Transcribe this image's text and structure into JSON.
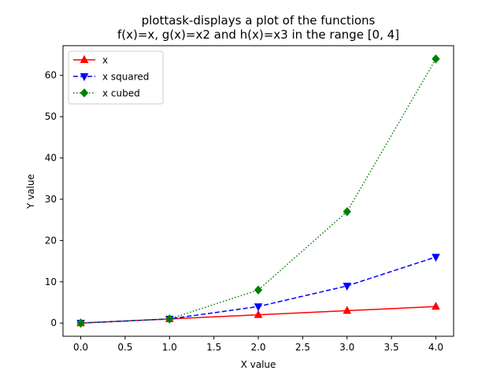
{
  "chart_data": {
    "type": "line",
    "title_line1": "plottask-displays a plot of the functions",
    "title_line2": "f(x)=x, g(x)=x2 and h(x)=x3 in the range [0, 4]",
    "xlabel": "X value",
    "ylabel": "Y value",
    "xlim": [
      -0.2,
      4.2
    ],
    "ylim": [
      -3.2,
      67.2
    ],
    "xticks": [
      0.0,
      0.5,
      1.0,
      1.5,
      2.0,
      2.5,
      3.0,
      3.5,
      4.0
    ],
    "xtick_labels": [
      "0.0",
      "0.5",
      "1.0",
      "1.5",
      "2.0",
      "2.5",
      "3.0",
      "3.5",
      "4.0"
    ],
    "yticks": [
      0,
      10,
      20,
      30,
      40,
      50,
      60
    ],
    "ytick_labels": [
      "0",
      "10",
      "20",
      "30",
      "40",
      "50",
      "60"
    ],
    "grid": false,
    "legend_position": "top-left",
    "x": [
      0,
      1,
      2,
      3,
      4
    ],
    "series": [
      {
        "name": "x",
        "values": [
          0,
          1,
          2,
          3,
          4
        ],
        "color": "#ff0000",
        "dash": "solid",
        "marker": "triangle-up"
      },
      {
        "name": "x squared",
        "values": [
          0,
          1,
          4,
          9,
          16
        ],
        "color": "#0000ff",
        "dash": "dashed",
        "marker": "triangle-down"
      },
      {
        "name": "x cubed",
        "values": [
          0,
          1,
          8,
          27,
          64
        ],
        "color": "#008000",
        "dash": "dotted",
        "marker": "diamond"
      }
    ]
  }
}
